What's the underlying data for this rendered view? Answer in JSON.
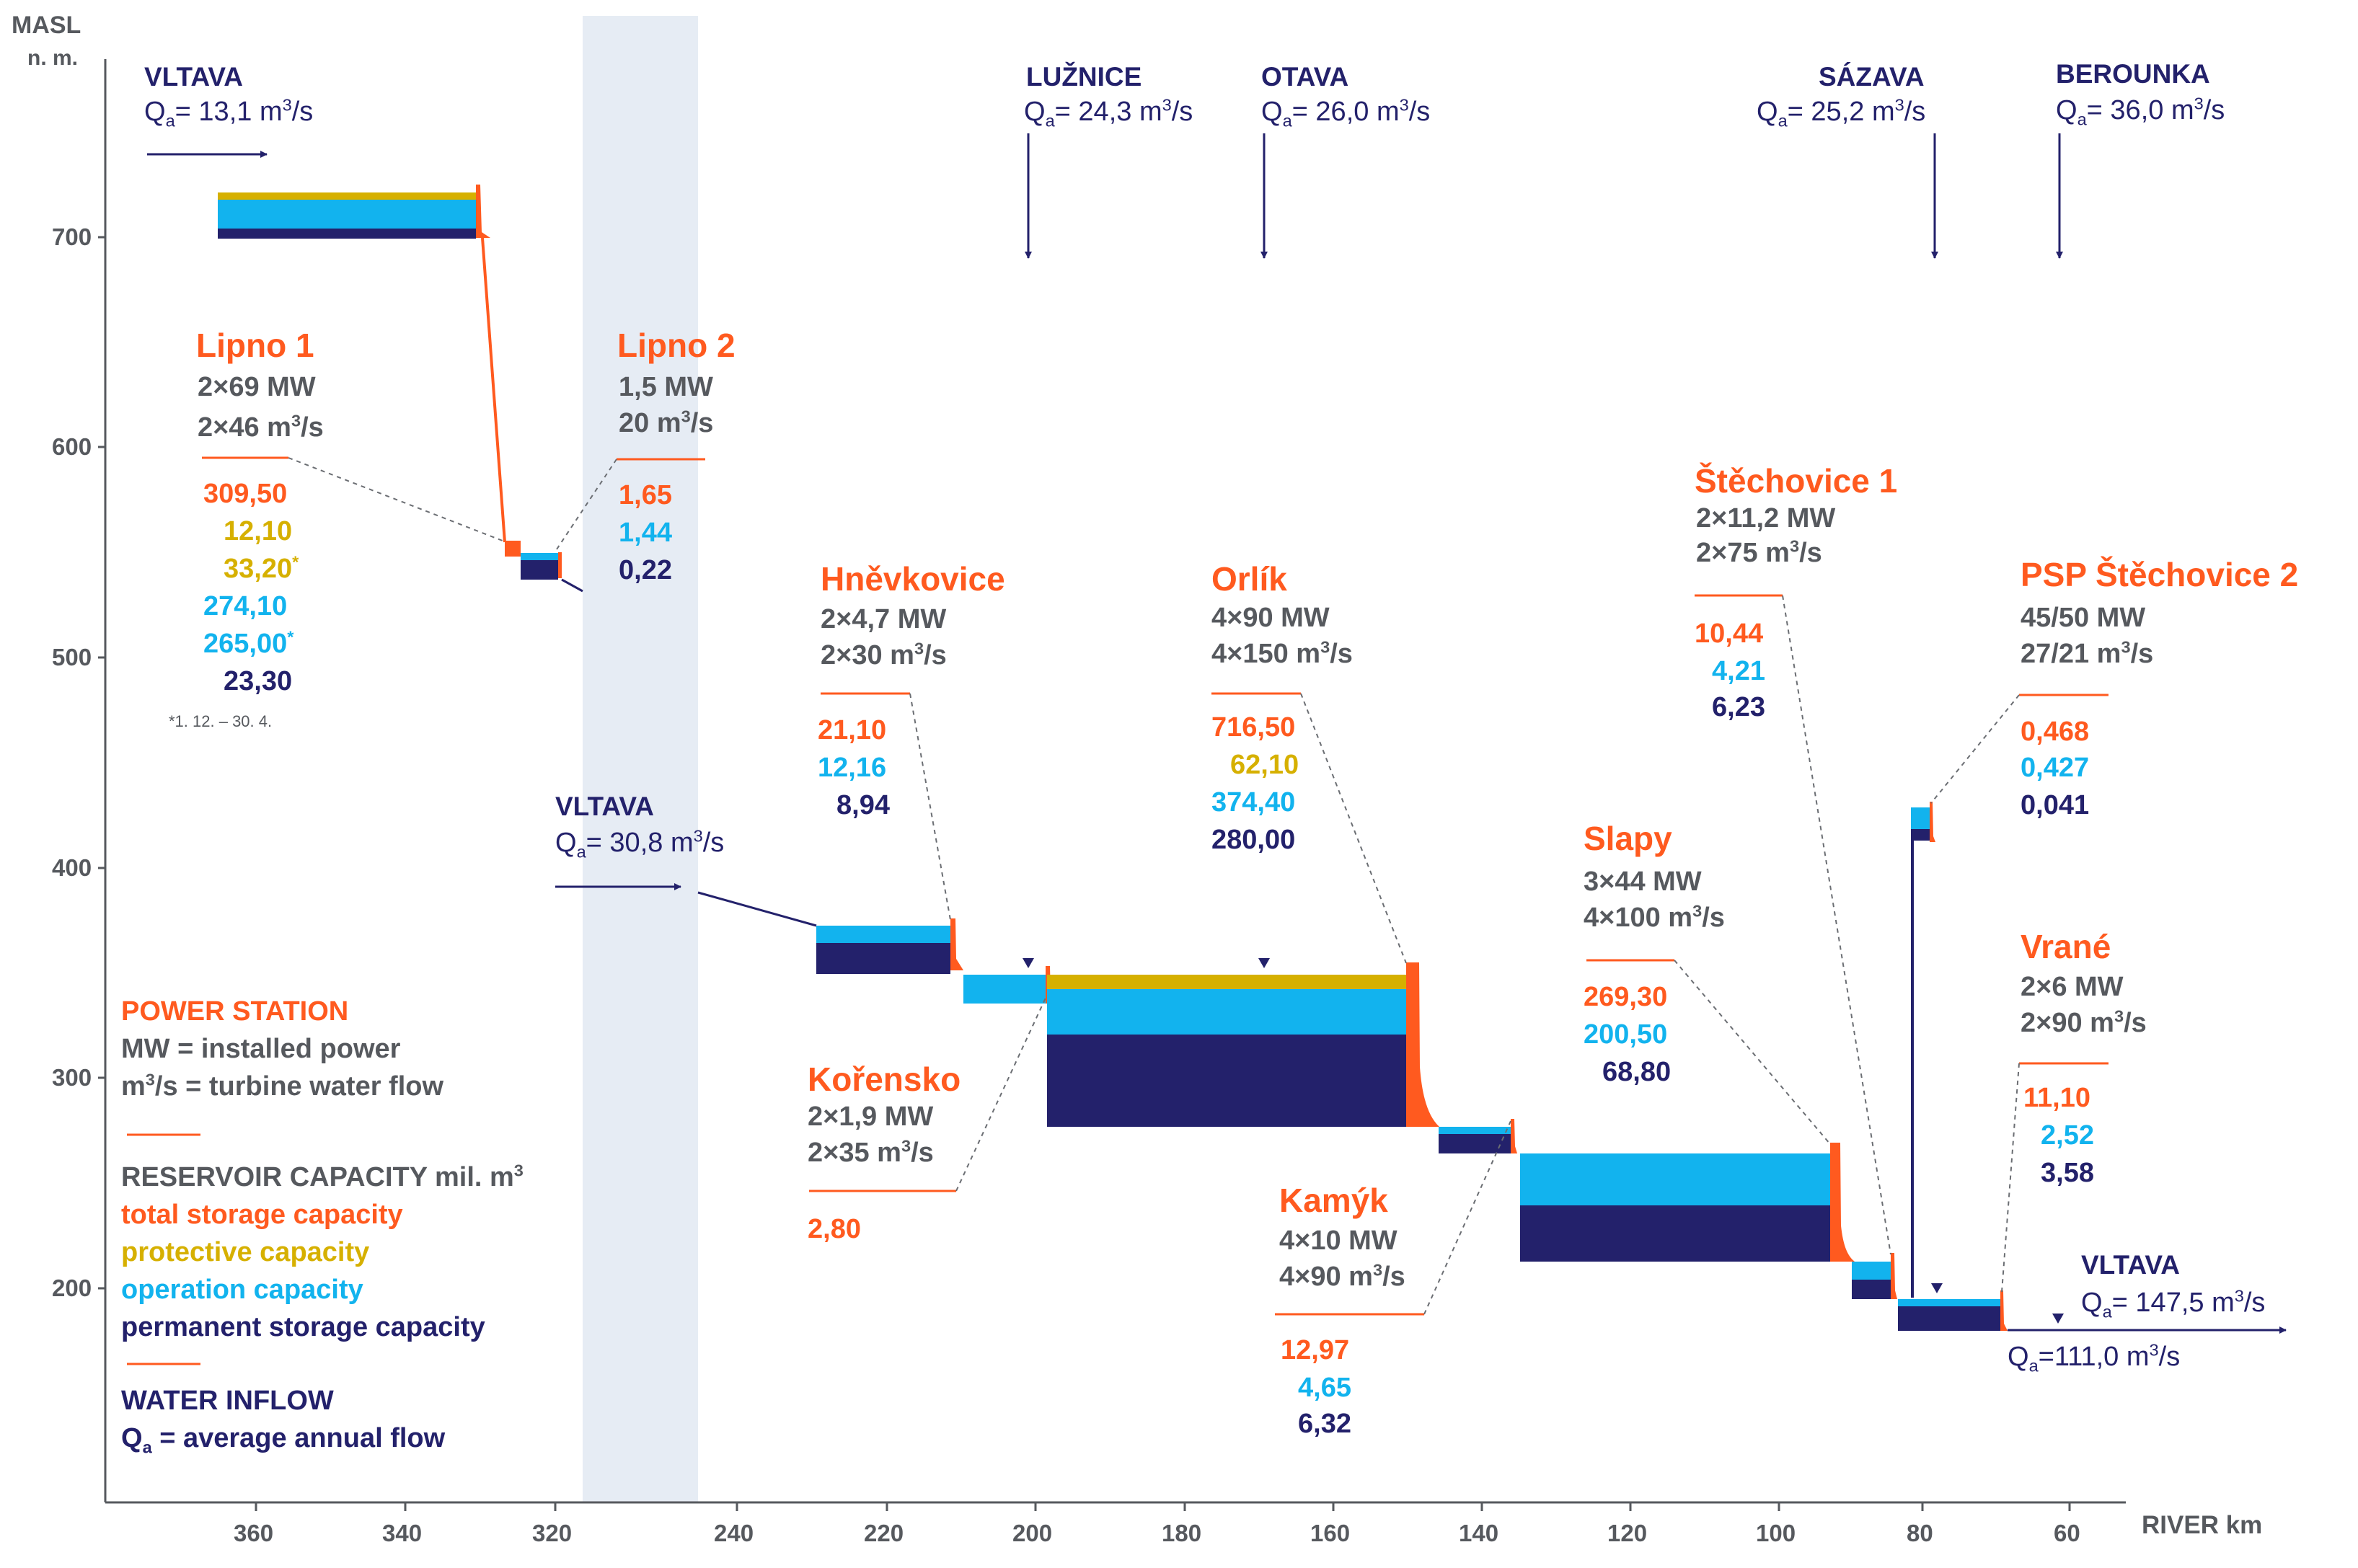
{
  "axis": {
    "y_title_1": "MASL",
    "y_title_2": "n. m.",
    "x_title": "RIVER km",
    "y_ticks": [
      "700",
      "600",
      "500",
      "400",
      "300",
      "200"
    ],
    "x_ticks_left": [
      "360",
      "340",
      "320"
    ],
    "x_ticks_right": [
      "240",
      "220",
      "200",
      "180",
      "160",
      "140",
      "120",
      "100",
      "80",
      "60"
    ]
  },
  "inflows": {
    "vltava_top": {
      "name": "VLTAVA",
      "q_label": "Q",
      "q_sub": "a",
      "q_value": "= 13,1 m",
      "q_unit_sup": "3",
      "q_tail": "/s"
    },
    "luznice": {
      "name": "LUŽNICE",
      "q_label": "Q",
      "q_sub": "a",
      "q_value": "= 24,3 m",
      "q_unit_sup": "3",
      "q_tail": "/s"
    },
    "otava": {
      "name": "OTAVA",
      "q_label": "Q",
      "q_sub": "a",
      "q_value": "= 26,0 m",
      "q_unit_sup": "3",
      "q_tail": "/s"
    },
    "sazava": {
      "name": "SÁZAVA",
      "q_label": "Q",
      "q_sub": "a",
      "q_value": "= 25,2 m",
      "q_unit_sup": "3",
      "q_tail": "/s"
    },
    "berounka": {
      "name": "BEROUNKA",
      "q_label": "Q",
      "q_sub": "a",
      "q_value": "= 36,0 m",
      "q_unit_sup": "3",
      "q_tail": "/s"
    },
    "vltava_mid": {
      "name": "VLTAVA",
      "q_label": "Q",
      "q_sub": "a",
      "q_value": "= 30,8 m",
      "q_unit_sup": "3",
      "q_tail": "/s"
    },
    "vltava_out": {
      "name": "VLTAVA",
      "q_label": "Q",
      "q_sub": "a",
      "q_value": "= 147,5 m",
      "q_unit_sup": "3",
      "q_tail": "/s"
    },
    "vltava_out2": {
      "q_label": "Q",
      "q_sub": "a",
      "q_value": "=111,0 m",
      "q_unit_sup": "3",
      "q_tail": "/s"
    }
  },
  "stations": {
    "lipno1": {
      "name": "Lipno 1",
      "power": "2×69 MW",
      "flow": "2×46 m",
      "flow_sup": "3",
      "flow_tail": "/s",
      "total": "309,50",
      "protective": "12,10",
      "protective_star": "33,20",
      "operation": "274,10",
      "operation_star": "265,00",
      "permanent": "23,30",
      "star": "*",
      "footnote": "*1. 12. – 30. 4."
    },
    "lipno2": {
      "name": "Lipno 2",
      "power": "1,5 MW",
      "flow": "20 m",
      "flow_sup": "3",
      "flow_tail": "/s",
      "total": "1,65",
      "operation": "1,44",
      "permanent": "0,22"
    },
    "hnevkovice": {
      "name": "Hněvkovice",
      "power": "2×4,7 MW",
      "flow": "2×30 m",
      "flow_sup": "3",
      "flow_tail": "/s",
      "total": "21,10",
      "operation": "12,16",
      "permanent": "8,94"
    },
    "korensko": {
      "name": "Kořensko",
      "power": "2×1,9 MW",
      "flow": "2×35 m",
      "flow_sup": "3",
      "flow_tail": "/s",
      "total": "2,80"
    },
    "orlik": {
      "name": "Orlík",
      "power": "4×90 MW",
      "flow": "4×150 m",
      "flow_sup": "3",
      "flow_tail": "/s",
      "total": "716,50",
      "protective": "62,10",
      "operation": "374,40",
      "permanent": "280,00"
    },
    "kamyk": {
      "name": "Kamýk",
      "power": "4×10 MW",
      "flow": "4×90 m",
      "flow_sup": "3",
      "flow_tail": "/s",
      "total": "12,97",
      "operation": "4,65",
      "permanent": "6,32"
    },
    "slapy": {
      "name": "Slapy",
      "power": "3×44 MW",
      "flow": "4×100 m",
      "flow_sup": "3",
      "flow_tail": "/s",
      "total": "269,30",
      "operation": "200,50",
      "permanent": "68,80"
    },
    "stechovice1": {
      "name": "Štěchovice 1",
      "power": "2×11,2 MW",
      "flow": "2×75 m",
      "flow_sup": "3",
      "flow_tail": "/s",
      "total": "10,44",
      "operation": "4,21",
      "permanent": "6,23"
    },
    "stechovice2": {
      "name": "PSP Štěchovice 2",
      "power": "45/50 MW",
      "flow": "27/21 m",
      "flow_sup": "3",
      "flow_tail": "/s",
      "total": "0,468",
      "operation": "0,427",
      "permanent": "0,041"
    },
    "vrane": {
      "name": "Vrané",
      "power": "2×6 MW",
      "flow": "2×90 m",
      "flow_sup": "3",
      "flow_tail": "/s",
      "total": "11,10",
      "operation": "2,52",
      "permanent": "3,58"
    }
  },
  "legend": {
    "power_station": "POWER STATION",
    "mw": "MW = installed power",
    "flow": "m",
    "flow_sup": "3",
    "flow_tail": "/s = turbine water flow",
    "reservoir": "RESERVOIR CAPACITY mil. m",
    "reservoir_sup": "3",
    "total": "total storage capacity",
    "protective": "protective capacity",
    "operation": "operation capacity",
    "permanent": "permanent storage capacity",
    "inflow": "WATER INFLOW",
    "qa": "Q",
    "qa_sub": "a",
    "qa_text": " = average annual flow"
  },
  "colors": {
    "navy": "#23216b",
    "orange": "#ff5a1f",
    "yellow": "#d6b000",
    "cyan": "#12b3ee",
    "gray": "#56595e",
    "gap": "#e6ecf4"
  }
}
